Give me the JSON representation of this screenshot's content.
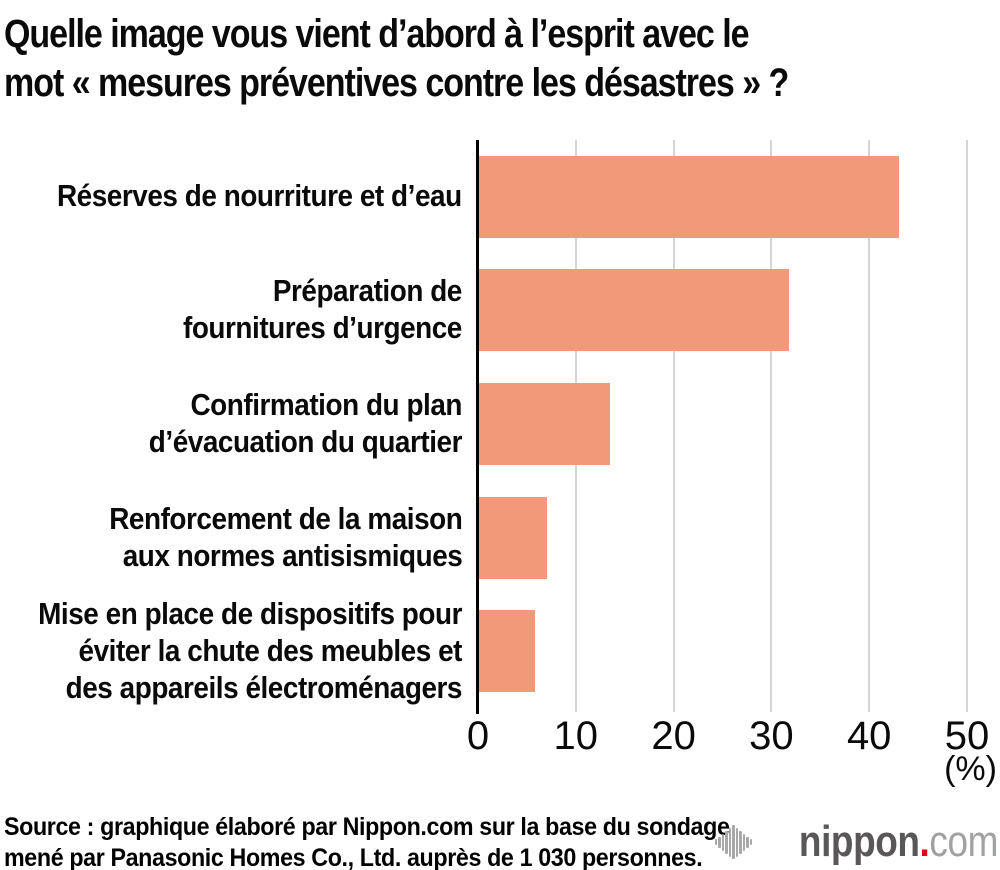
{
  "title": {
    "line1": "Quelle image vous vient d’abord à l’esprit avec le",
    "line2": "mot « mesures préventives contre les désastres » ?"
  },
  "chart_data": {
    "type": "bar",
    "orientation": "horizontal",
    "title": "Quelle image vous vient d’abord à l’esprit avec le mot « mesures préventives contre les désastres » ?",
    "categories": [
      "Réserves de nourriture et d’eau",
      "Préparation de fournitures d’urgence",
      "Confirmation du plan d’évacuation du quartier",
      "Renforcement de la maison aux normes antisismiques",
      "Mise en place de dispositifs pour éviter la chute des meubles et des appareils électroménagers"
    ],
    "category_lines": [
      [
        "Réserves de nourriture et d’eau"
      ],
      [
        "Préparation de",
        "fournitures d’urgence"
      ],
      [
        "Confirmation du plan",
        "d’évacuation du quartier"
      ],
      [
        "Renforcement de la maison",
        "aux normes antisismiques"
      ],
      [
        "Mise en place de dispositifs pour",
        "éviter la chute des meubles et",
        "des appareils électroménagers"
      ]
    ],
    "values": [
      42.9,
      31.7,
      13.4,
      7.0,
      5.7
    ],
    "xlim": [
      0,
      50
    ],
    "xticks": [
      "0",
      "10",
      "20",
      "30",
      "40",
      "50"
    ],
    "unit_label": "(%)",
    "bar_color": "#F2997A",
    "gridline_color": "#D5D5D5",
    "axis_color": "#000000",
    "grid": true,
    "legend": "none"
  },
  "source": {
    "line1": "Source : graphique élaboré par Nippon.com sur la base du sondage",
    "line2": "mené par Panasonic Homes Co., Ltd. auprès de 1 030 personnes."
  },
  "logo": {
    "name": "nippon",
    "dot": ".",
    "tld": "com",
    "name_color": "#595757",
    "dot_color": "#E60012",
    "tld_color": "#A0A1A1",
    "icon_color": "#A8A8A8",
    "icon_bar_heights": [
      6,
      11,
      17,
      23,
      29,
      34,
      29,
      23,
      17,
      11,
      6
    ]
  }
}
